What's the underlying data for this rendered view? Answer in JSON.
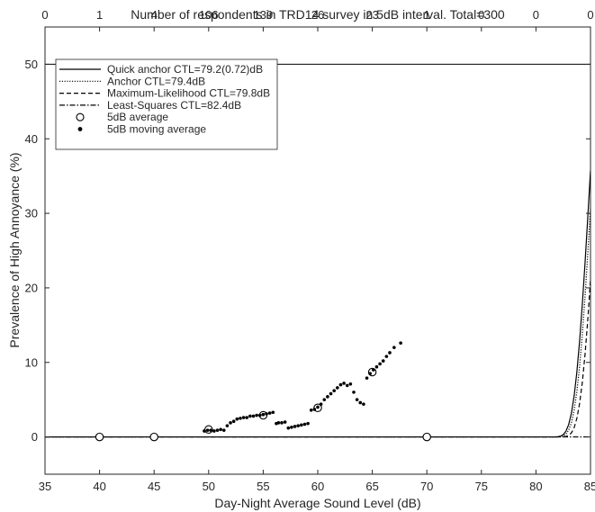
{
  "chart_data": {
    "type": "scatter",
    "title": "Number of respondents in TRD14 survey in 5dB interval. Total=300",
    "xlabel": "Day-Night Average Sound Level (dB)",
    "ylabel": "Prevalence of High Annoyance (%)",
    "xlim": [
      35,
      85
    ],
    "ylim": [
      -5,
      55
    ],
    "x_ticks": [
      35,
      40,
      45,
      50,
      55,
      60,
      65,
      70,
      75,
      80,
      85
    ],
    "y_ticks": [
      0,
      10,
      20,
      30,
      40,
      50
    ],
    "top_ticks_x": [
      35,
      40,
      45,
      50,
      55,
      60,
      65,
      70,
      75,
      80,
      85
    ],
    "top_tick_labels": [
      "0",
      "1",
      "4",
      "106",
      "139",
      "26",
      "23",
      "1",
      "0",
      "0",
      "0"
    ],
    "reference_line_y": 50,
    "legend_position": "top-left",
    "series": [
      {
        "name": "Quick anchor CTL=79.2(0.72)dB",
        "kind": "line",
        "dash": "solid",
        "ctl": 79.2
      },
      {
        "name": "Anchor CTL=79.4dB",
        "kind": "line",
        "dash": "dotted",
        "ctl": 79.4
      },
      {
        "name": "Maximum-Likelihood CTL=79.8dB",
        "kind": "line",
        "dash": "dashed",
        "ctl": 79.8
      },
      {
        "name": "Least-Squares CTL=82.4dB",
        "kind": "line",
        "dash": "dashdot",
        "ctl": 82.4
      },
      {
        "name": "5dB average",
        "kind": "open-marker",
        "x": [
          40,
          45,
          50,
          55,
          60,
          65,
          70
        ],
        "y": [
          0,
          0,
          1,
          2.9,
          3.9,
          8.7,
          0
        ]
      },
      {
        "name": "5dB moving average",
        "kind": "filled-marker",
        "x": [
          49.6,
          49.9,
          50.2,
          50.5,
          50.8,
          51.1,
          51.4,
          51.7,
          52.0,
          52.3,
          52.6,
          52.9,
          53.2,
          53.5,
          53.8,
          54.1,
          54.4,
          54.7,
          55.0,
          55.3,
          55.6,
          55.9,
          56.2,
          56.4,
          56.7,
          57.0,
          57.3,
          57.6,
          57.9,
          58.2,
          58.5,
          58.8,
          59.1,
          59.4,
          59.7,
          60.0,
          60.3,
          60.6,
          60.9,
          61.2,
          61.5,
          61.8,
          62.1,
          62.4,
          62.7,
          63.0,
          63.3,
          63.6,
          63.9,
          64.2,
          64.5,
          64.8,
          65.1,
          65.4,
          65.7,
          66.0,
          66.3,
          66.6,
          67.0,
          67.6
        ],
        "y": [
          0.8,
          0.9,
          0.9,
          0.8,
          0.9,
          1.0,
          0.9,
          1.5,
          1.9,
          2.1,
          2.4,
          2.5,
          2.6,
          2.6,
          2.8,
          2.8,
          2.9,
          2.9,
          3.0,
          3.1,
          3.2,
          3.3,
          1.8,
          1.9,
          1.9,
          2.0,
          1.2,
          1.3,
          1.4,
          1.5,
          1.6,
          1.7,
          1.8,
          3.6,
          3.7,
          4.0,
          4.4,
          5.0,
          5.4,
          5.8,
          6.2,
          6.6,
          7.0,
          7.2,
          6.9,
          7.1,
          6.0,
          5.0,
          4.6,
          4.4,
          7.9,
          8.5,
          9.0,
          9.4,
          9.8,
          10.2,
          10.8,
          11.3,
          12.0,
          12.6
        ]
      }
    ]
  }
}
